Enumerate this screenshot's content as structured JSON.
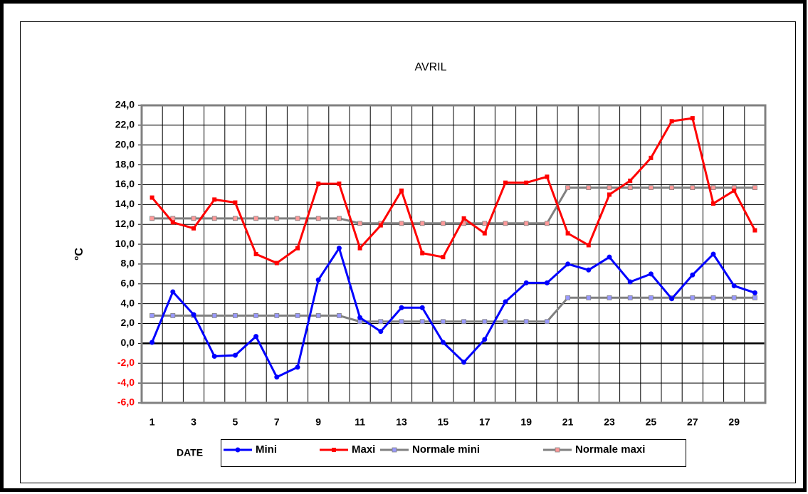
{
  "chart_data": {
    "type": "line",
    "title": "AVRIL",
    "y_label": "°C",
    "x_label": "DATE",
    "categories": [
      1,
      null,
      3,
      null,
      5,
      null,
      7,
      null,
      9,
      null,
      11,
      null,
      13,
      null,
      15,
      null,
      17,
      null,
      19,
      null,
      21,
      null,
      23,
      null,
      25,
      null,
      27,
      null,
      29,
      null
    ],
    "series": [
      {
        "name": "Mini",
        "color": "#0000ff",
        "marker": "circle",
        "marker_color": "#0000ff",
        "values": [
          0.1,
          5.2,
          2.9,
          -1.3,
          -1.2,
          0.7,
          -3.4,
          -2.4,
          6.4,
          9.6,
          2.6,
          1.2,
          3.6,
          3.6,
          0.1,
          -1.9,
          0.4,
          4.2,
          6.1,
          6.1,
          8.0,
          7.4,
          8.7,
          6.2,
          7.0,
          4.5,
          6.9,
          9.0,
          5.8,
          5.1
        ]
      },
      {
        "name": "Maxi",
        "color": "#ff0000",
        "marker": "square",
        "marker_color": "#ff0000",
        "values": [
          14.7,
          12.2,
          11.6,
          14.5,
          14.2,
          9.0,
          8.1,
          9.6,
          16.1,
          16.1,
          9.6,
          11.9,
          15.4,
          9.1,
          8.7,
          12.6,
          11.1,
          16.2,
          16.2,
          16.8,
          11.1,
          9.9,
          15.0,
          16.4,
          18.7,
          22.4,
          22.7,
          14.1,
          15.4,
          11.4
        ]
      },
      {
        "name": "Normale mini",
        "color": "#808080",
        "marker": "square",
        "marker_color": "#9999ff",
        "values": [
          2.8,
          2.8,
          2.8,
          2.8,
          2.8,
          2.8,
          2.8,
          2.8,
          2.8,
          2.8,
          2.2,
          2.2,
          2.2,
          2.2,
          2.2,
          2.2,
          2.2,
          2.2,
          2.2,
          2.2,
          4.6,
          4.6,
          4.6,
          4.6,
          4.6,
          4.6,
          4.6,
          4.6,
          4.6,
          4.6
        ]
      },
      {
        "name": "Normale maxi",
        "color": "#808080",
        "marker": "square",
        "marker_color": "#ff9999",
        "values": [
          12.6,
          12.6,
          12.6,
          12.6,
          12.6,
          12.6,
          12.6,
          12.6,
          12.6,
          12.6,
          12.1,
          12.1,
          12.1,
          12.1,
          12.1,
          12.1,
          12.1,
          12.1,
          12.1,
          12.1,
          15.7,
          15.7,
          15.7,
          15.7,
          15.7,
          15.7,
          15.7,
          15.7,
          15.7,
          15.7
        ]
      }
    ],
    "ylim": [
      -6,
      24
    ],
    "yticks": [
      {
        "value": -6,
        "label": "-6,0"
      },
      {
        "value": -4,
        "label": "-4,0"
      },
      {
        "value": -2,
        "label": "-2,0"
      },
      {
        "value": 0,
        "label": "0,0"
      },
      {
        "value": 2,
        "label": "2,0"
      },
      {
        "value": 4,
        "label": "4,0"
      },
      {
        "value": 6,
        "label": "6,0"
      },
      {
        "value": 8,
        "label": "8,0"
      },
      {
        "value": 10,
        "label": "10,0"
      },
      {
        "value": 12,
        "label": "12,0"
      },
      {
        "value": 14,
        "label": "14,0"
      },
      {
        "value": 16,
        "label": "16,0"
      },
      {
        "value": 18,
        "label": "18,0"
      },
      {
        "value": 20,
        "label": "20,0"
      },
      {
        "value": 22,
        "label": "22,0"
      },
      {
        "value": 24,
        "label": "24,0"
      }
    ],
    "negative_tick_color": "#ff0000",
    "grid": true,
    "legend": "bottom"
  }
}
